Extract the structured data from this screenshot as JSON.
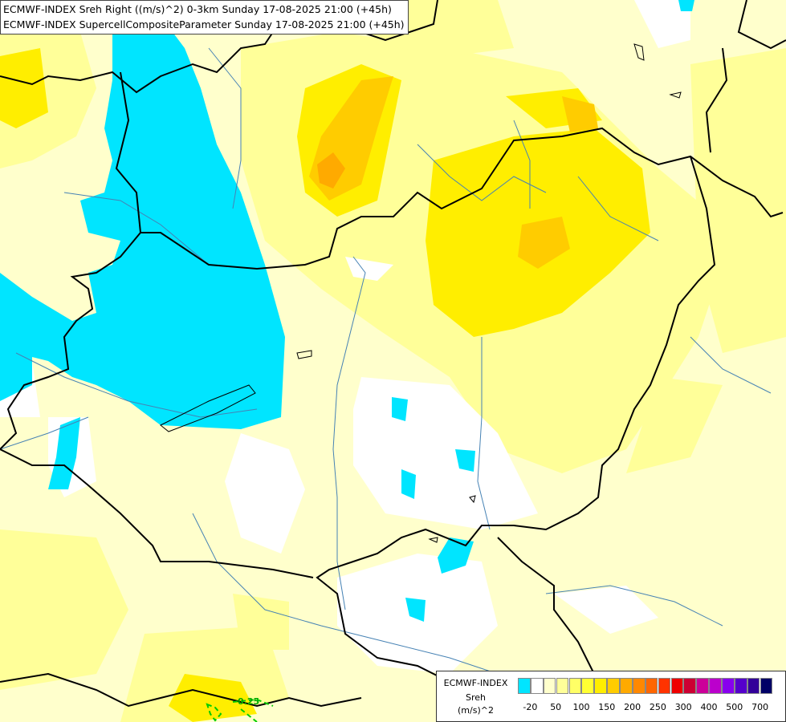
{
  "header": {
    "line1": "ECMWF-INDEX Sreh Right ((m/s)^2) 0-3km Sunday 17-08-2025 21:00 (+45h)",
    "line2": "ECMWF-INDEX SupercellCompositeParameter Sunday 17-08-2025 21:00 (+45h)"
  },
  "legend": {
    "model": "ECMWF-INDEX",
    "variable": "Sreh",
    "unit": "(m/s)^2",
    "colors": [
      "#00e5ff",
      "#ffffff",
      "#ffffcc",
      "#ffff99",
      "#ffff66",
      "#ffff33",
      "#ffee00",
      "#ffcc00",
      "#ffaa00",
      "#ff8800",
      "#ff6600",
      "#ff3300",
      "#ee0000",
      "#cc0033",
      "#cc0099",
      "#bb00cc",
      "#8800ee",
      "#5500cc",
      "#330099",
      "#000066"
    ],
    "tick_labels": [
      "-20",
      "50",
      "100",
      "150",
      "200",
      "250",
      "300",
      "400",
      "500",
      "700"
    ]
  },
  "annotations": {
    "scp_contour_label": "0.25"
  },
  "colors": {
    "negative": "#00e5ff",
    "near_zero": "#ffffff",
    "low": "#ffffcc",
    "moderate": "#ffff99",
    "elevated": "#ffee00",
    "high": "#ffcc00",
    "border": "#000000",
    "river": "#4682b4",
    "scp_contour": "#00cc00"
  }
}
